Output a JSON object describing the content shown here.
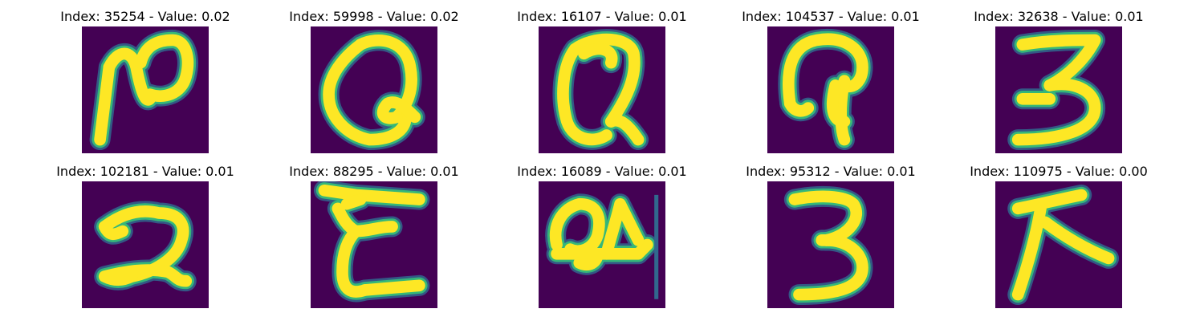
{
  "colors": {
    "background": "#440154",
    "stroke_core": "#fde725",
    "stroke_mid": "#35b779",
    "stroke_edge": "#31688e"
  },
  "panels": [
    {
      "title": "Index: 35254 - Value: 0.02",
      "glyph": "N"
    },
    {
      "title": "Index: 59998 - Value: 0.02",
      "glyph": "Q"
    },
    {
      "title": "Index: 16107 - Value: 0.01",
      "glyph": "Q"
    },
    {
      "title": "Index: 104537 - Value: 0.01",
      "glyph": "P"
    },
    {
      "title": "Index: 32638 - Value: 0.01",
      "glyph": "3"
    },
    {
      "title": "Index: 102181 - Value: 0.01",
      "glyph": "2"
    },
    {
      "title": "Index: 88295 - Value: 0.01",
      "glyph": "E"
    },
    {
      "title": "Index: 16089 - Value: 0.01",
      "glyph": "4"
    },
    {
      "title": "Index: 95312 - Value: 0.01",
      "glyph": "3"
    },
    {
      "title": "Index: 110975 - Value: 0.00",
      "glyph": "K"
    }
  ]
}
